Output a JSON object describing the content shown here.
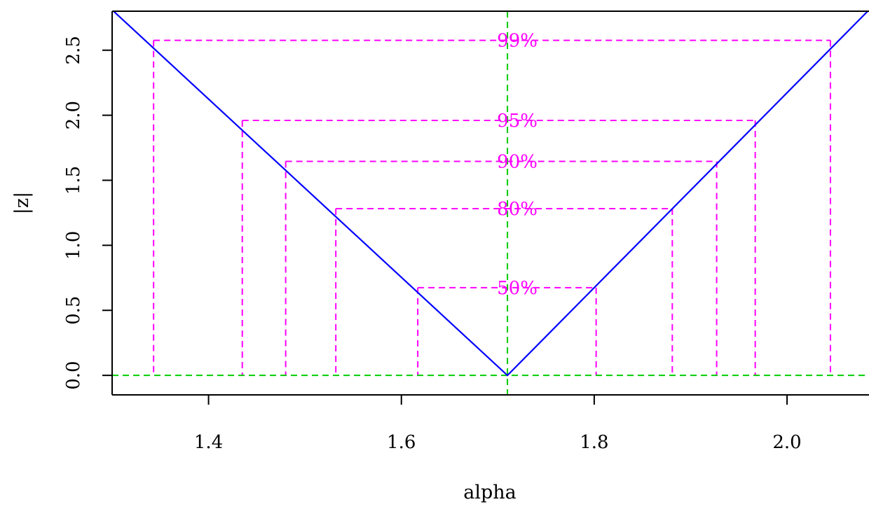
{
  "chart_data": {
    "type": "line",
    "title": "",
    "xlabel": "alpha",
    "ylabel": "|z|",
    "xlim": [
      1.3,
      2.085
    ],
    "ylim": [
      -0.15,
      2.8
    ],
    "x_ticks": [
      1.4,
      1.6,
      1.8,
      2.0
    ],
    "x_tick_labels": [
      "1.4",
      "1.6",
      "1.8",
      "2.0"
    ],
    "y_ticks": [
      0.0,
      0.5,
      1.0,
      1.5,
      2.0,
      2.5
    ],
    "y_tick_labels": [
      "0.0",
      "0.5",
      "1.0",
      "1.5",
      "2.0",
      "2.5"
    ],
    "grid": false,
    "curve": {
      "color": "#0000ff",
      "x": [
        1.3,
        1.71,
        2.085
      ],
      "y": [
        2.81,
        0.0,
        2.81
      ]
    },
    "reference_lines": {
      "color": "#00cc00",
      "vertical_x": 1.71,
      "horizontal_y": 0.0
    },
    "confidence_levels": {
      "color": "#ff00ff",
      "items": [
        {
          "label": "50%",
          "z": 0.674,
          "lower": 1.617,
          "upper": 1.802
        },
        {
          "label": "80%",
          "z": 1.282,
          "lower": 1.532,
          "upper": 1.881
        },
        {
          "label": "90%",
          "z": 1.645,
          "lower": 1.48,
          "upper": 1.927
        },
        {
          "label": "95%",
          "z": 1.96,
          "lower": 1.435,
          "upper": 1.967
        },
        {
          "label": "99%",
          "z": 2.576,
          "lower": 1.343,
          "upper": 2.045
        }
      ]
    }
  }
}
